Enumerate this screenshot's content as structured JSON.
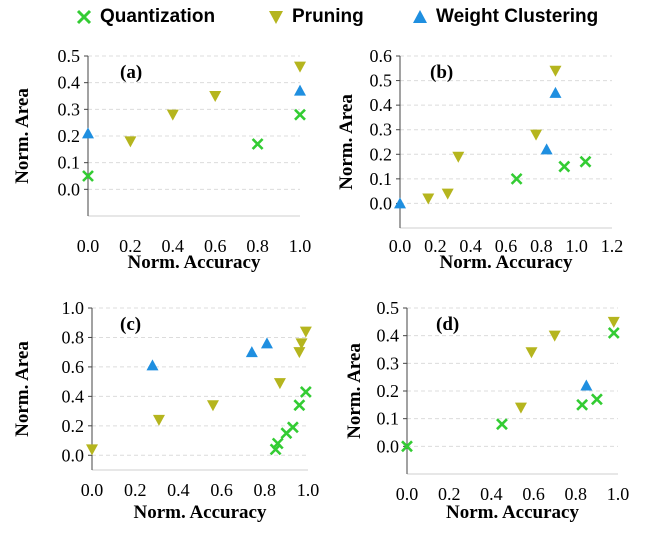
{
  "legend": [
    {
      "name": "Quantization",
      "marker": "x",
      "color": "#33cc33"
    },
    {
      "name": "Pruning",
      "marker": "triangle-down",
      "color": "#b5b51e"
    },
    {
      "name": "Weight Clustering",
      "marker": "triangle-up",
      "color": "#1f8fe0"
    }
  ],
  "chart_data": [
    {
      "type": "scatter",
      "panel_label": "(a)",
      "xlabel": "Norm. Accuracy",
      "ylabel": "Norm. Area",
      "xlim": [
        0,
        1.0
      ],
      "ylim": [
        -0.1,
        0.5
      ],
      "xticks": [
        "0.0",
        "0.2",
        "0.4",
        "0.6",
        "0.8",
        "1.0"
      ],
      "yticks": [
        "0.0",
        "0.1",
        "0.2",
        "0.3",
        "0.4",
        "0.5"
      ],
      "xtick_values": [
        0,
        0.2,
        0.4,
        0.6,
        0.8,
        1.0
      ],
      "ytick_values": [
        0,
        0.1,
        0.2,
        0.3,
        0.4,
        0.5
      ],
      "grid": true,
      "series": [
        {
          "name": "Quantization",
          "points": [
            [
              0.0,
              0.05
            ],
            [
              0.8,
              0.17
            ],
            [
              1.0,
              0.28
            ]
          ]
        },
        {
          "name": "Pruning",
          "points": [
            [
              0.2,
              0.18
            ],
            [
              0.4,
              0.28
            ],
            [
              0.6,
              0.35
            ],
            [
              1.0,
              0.46
            ]
          ]
        },
        {
          "name": "Weight Clustering",
          "points": [
            [
              0.0,
              0.21
            ],
            [
              1.0,
              0.37
            ]
          ]
        }
      ]
    },
    {
      "type": "scatter",
      "panel_label": "(b)",
      "xlabel": "Norm. Accuracy",
      "ylabel": "Norm. Area",
      "xlim": [
        0,
        1.2
      ],
      "ylim": [
        -0.1,
        0.6
      ],
      "xticks": [
        "0.0",
        "0.2",
        "0.4",
        "0.6",
        "0.8",
        "1.0",
        "1.2"
      ],
      "yticks": [
        "0.0",
        "0.1",
        "0.2",
        "0.3",
        "0.4",
        "0.5",
        "0.6"
      ],
      "xtick_values": [
        0,
        0.2,
        0.4,
        0.6,
        0.8,
        1.0,
        1.2
      ],
      "ytick_values": [
        0,
        0.1,
        0.2,
        0.3,
        0.4,
        0.5,
        0.6
      ],
      "grid": true,
      "series": [
        {
          "name": "Quantization",
          "points": [
            [
              0.66,
              0.1
            ],
            [
              0.93,
              0.15
            ],
            [
              1.05,
              0.17
            ]
          ]
        },
        {
          "name": "Pruning",
          "points": [
            [
              0.16,
              0.02
            ],
            [
              0.27,
              0.04
            ],
            [
              0.33,
              0.19
            ],
            [
              0.77,
              0.28
            ],
            [
              0.88,
              0.54
            ]
          ]
        },
        {
          "name": "Weight Clustering",
          "points": [
            [
              0.0,
              0.0
            ],
            [
              0.83,
              0.22
            ],
            [
              0.88,
              0.45
            ]
          ]
        }
      ]
    },
    {
      "type": "scatter",
      "panel_label": "(c)",
      "xlabel": "Norm. Accuracy",
      "ylabel": "Norm. Area",
      "xlim": [
        0,
        1.0
      ],
      "ylim": [
        -0.1,
        1.0
      ],
      "xticks": [
        "0.0",
        "0.2",
        "0.4",
        "0.6",
        "0.8",
        "1.0"
      ],
      "yticks": [
        "0.0",
        "0.2",
        "0.4",
        "0.6",
        "0.8",
        "1.0"
      ],
      "xtick_values": [
        0,
        0.2,
        0.4,
        0.6,
        0.8,
        1.0
      ],
      "ytick_values": [
        0,
        0.2,
        0.4,
        0.6,
        0.8,
        1.0
      ],
      "grid": true,
      "series": [
        {
          "name": "Quantization",
          "points": [
            [
              0.85,
              0.04
            ],
            [
              0.86,
              0.08
            ],
            [
              0.9,
              0.15
            ],
            [
              0.93,
              0.19
            ],
            [
              0.96,
              0.34
            ],
            [
              0.99,
              0.43
            ]
          ]
        },
        {
          "name": "Pruning",
          "points": [
            [
              0.0,
              0.04
            ],
            [
              0.31,
              0.24
            ],
            [
              0.56,
              0.34
            ],
            [
              0.87,
              0.49
            ],
            [
              0.96,
              0.7
            ],
            [
              0.97,
              0.76
            ],
            [
              0.99,
              0.84
            ]
          ]
        },
        {
          "name": "Weight Clustering",
          "points": [
            [
              0.28,
              0.61
            ],
            [
              0.74,
              0.7
            ],
            [
              0.81,
              0.76
            ]
          ]
        }
      ]
    },
    {
      "type": "scatter",
      "panel_label": "(d)",
      "xlabel": "Norm. Accuracy",
      "ylabel": "Norm. Area",
      "xlim": [
        0,
        1.0
      ],
      "ylim": [
        -0.1,
        0.5
      ],
      "xticks": [
        "0.0",
        "0.2",
        "0.4",
        "0.6",
        "0.8",
        "1.0"
      ],
      "yticks": [
        "0.0",
        "0.1",
        "0.2",
        "0.3",
        "0.4",
        "0.5"
      ],
      "xtick_values": [
        0,
        0.2,
        0.4,
        0.6,
        0.8,
        1.0
      ],
      "ytick_values": [
        0,
        0.1,
        0.2,
        0.3,
        0.4,
        0.5
      ],
      "grid": true,
      "series": [
        {
          "name": "Quantization",
          "points": [
            [
              0.0,
              0.0
            ],
            [
              0.45,
              0.08
            ],
            [
              0.83,
              0.15
            ],
            [
              0.9,
              0.17
            ],
            [
              0.98,
              0.41
            ]
          ]
        },
        {
          "name": "Pruning",
          "points": [
            [
              0.54,
              0.14
            ],
            [
              0.59,
              0.34
            ],
            [
              0.7,
              0.4
            ],
            [
              0.98,
              0.45
            ]
          ]
        },
        {
          "name": "Weight Clustering",
          "points": [
            [
              0.85,
              0.22
            ]
          ]
        }
      ]
    }
  ]
}
